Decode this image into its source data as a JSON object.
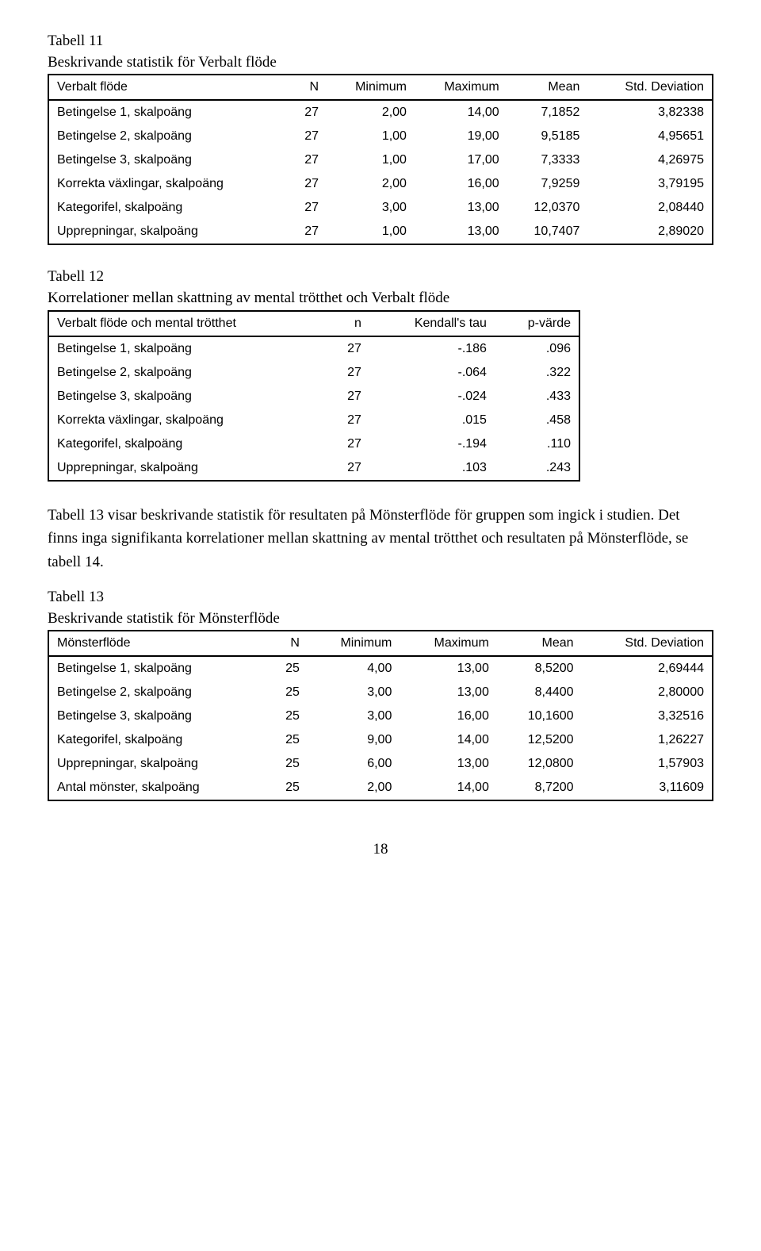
{
  "table11": {
    "label": "Tabell 11",
    "caption": "Beskrivande statistik för Verbalt flöde",
    "headers": [
      "Verbalt flöde",
      "N",
      "Minimum",
      "Maximum",
      "Mean",
      "Std. Deviation"
    ],
    "rows": [
      [
        "Betingelse 1, skalpoäng",
        "27",
        "2,00",
        "14,00",
        "7,1852",
        "3,82338"
      ],
      [
        "Betingelse 2, skalpoäng",
        "27",
        "1,00",
        "19,00",
        "9,5185",
        "4,95651"
      ],
      [
        "Betingelse 3, skalpoäng",
        "27",
        "1,00",
        "17,00",
        "7,3333",
        "4,26975"
      ],
      [
        "Korrekta växlingar, skalpoäng",
        "27",
        "2,00",
        "16,00",
        "7,9259",
        "3,79195"
      ],
      [
        "Kategorifel, skalpoäng",
        "27",
        "3,00",
        "13,00",
        "12,0370",
        "2,08440"
      ],
      [
        "Upprepningar, skalpoäng",
        "27",
        "1,00",
        "13,00",
        "10,7407",
        "2,89020"
      ]
    ]
  },
  "table12": {
    "label": "Tabell 12",
    "caption": "Korrelationer mellan skattning av mental trötthet och Verbalt flöde",
    "headers": [
      "Verbalt flöde och mental trötthet",
      "n",
      "Kendall's tau",
      "p-värde"
    ],
    "rows": [
      [
        "Betingelse 1, skalpoäng",
        "27",
        "-.186",
        ".096"
      ],
      [
        "Betingelse 2, skalpoäng",
        "27",
        "-.064",
        ".322"
      ],
      [
        "Betingelse 3, skalpoäng",
        "27",
        "-.024",
        ".433"
      ],
      [
        "Korrekta växlingar, skalpoäng",
        "27",
        ".015",
        ".458"
      ],
      [
        "Kategorifel, skalpoäng",
        "27",
        "-.194",
        ".110"
      ],
      [
        "Upprepningar, skalpoäng",
        "27",
        ".103",
        ".243"
      ]
    ]
  },
  "paragraph": "Tabell 13 visar beskrivande statistik för resultaten på Mönsterflöde för gruppen som ingick i studien. Det finns inga signifikanta korrelationer mellan skattning av mental trötthet och resultaten på Mönsterflöde, se tabell 14.",
  "table13": {
    "label": "Tabell 13",
    "caption": "Beskrivande statistik för Mönsterflöde",
    "headers": [
      "Mönsterflöde",
      "N",
      "Minimum",
      "Maximum",
      "Mean",
      "Std. Deviation"
    ],
    "rows": [
      [
        "Betingelse 1, skalpoäng",
        "25",
        "4,00",
        "13,00",
        "8,5200",
        "2,69444"
      ],
      [
        "Betingelse 2, skalpoäng",
        "25",
        "3,00",
        "13,00",
        "8,4400",
        "2,80000"
      ],
      [
        "Betingelse 3, skalpoäng",
        "25",
        "3,00",
        "16,00",
        "10,1600",
        "3,32516"
      ],
      [
        "Kategorifel, skalpoäng",
        "25",
        "9,00",
        "14,00",
        "12,5200",
        "1,26227"
      ],
      [
        "Upprepningar, skalpoäng",
        "25",
        "6,00",
        "13,00",
        "12,0800",
        "1,57903"
      ],
      [
        "Antal mönster, skalpoäng",
        "25",
        "2,00",
        "14,00",
        "8,7200",
        "3,11609"
      ]
    ]
  },
  "pageNumber": "18"
}
